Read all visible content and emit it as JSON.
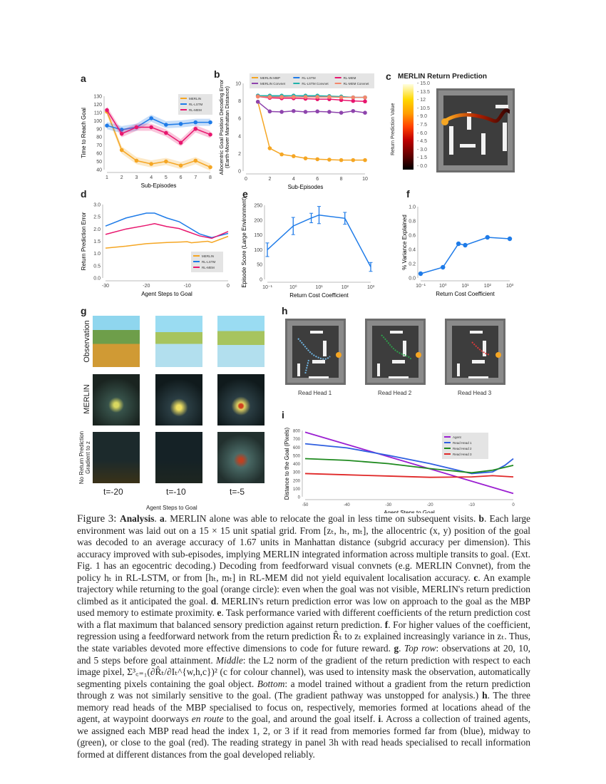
{
  "panels": {
    "a": "a",
    "b": "b",
    "c": "c",
    "d": "d",
    "e": "e",
    "f": "f",
    "g": "g",
    "h": "h",
    "i": "i"
  },
  "panel_c": {
    "title": "MERLIN Return Prediction",
    "colorbar_label": "Return Prediction Value",
    "colorbar_ticks": [
      "15.0",
      "13.5",
      "12",
      "10.5",
      "9.0",
      "7.5",
      "6.0",
      "4.5",
      "3.0",
      "1.5",
      "0.0"
    ]
  },
  "panel_g": {
    "rows": [
      "Observation",
      "MERLIN",
      "No Return Prediction Gradient to z"
    ],
    "row3_line1": "No Return Prediction",
    "row3_line2": "Gradient to z",
    "times": [
      "t=-20",
      "t=-10",
      "t=-5"
    ],
    "xlabel": "Agent Steps to Goal"
  },
  "panel_h": {
    "labels": [
      "Read Head 1",
      "Read Head 2",
      "Read Head 3"
    ],
    "trace_colors": [
      "#6fb3e0",
      "#2e9e4a",
      "#d83a3a"
    ],
    "goal_color": "#f5a623"
  },
  "chart_data": [
    {
      "id": "a",
      "type": "line",
      "xlabel": "Sub-Episodes",
      "ylabel": "Time to Reach Goal",
      "xlim": [
        1,
        8
      ],
      "ylim": [
        40,
        130
      ],
      "xticks": [
        1,
        2,
        3,
        4,
        5,
        6,
        7,
        8
      ],
      "xtick_labels": [
        "1",
        "2",
        "3",
        "4",
        "5",
        "6",
        "7",
        "8"
      ],
      "yticks": [
        40,
        50,
        60,
        70,
        80,
        90,
        100,
        110,
        120,
        130
      ],
      "ytick_labels": [
        "40",
        "50",
        "60",
        "70",
        "80",
        "90",
        "100",
        "110",
        "120",
        "130"
      ],
      "legend": "top-right",
      "grid": false,
      "x": [
        1,
        2,
        3,
        4,
        5,
        6,
        7,
        8
      ],
      "series": [
        {
          "name": "MERLIN",
          "color": "#f5a623",
          "values": [
            111,
            64,
            51,
            47,
            50,
            45,
            51,
            43
          ]
        },
        {
          "name": "RL-LSTM",
          "color": "#1e7be8",
          "values": [
            94,
            89,
            92,
            103,
            95,
            96,
            98,
            98
          ]
        },
        {
          "name": "RL-MEM",
          "color": "#e8166e",
          "values": [
            113,
            84,
            92,
            92,
            85,
            73,
            90,
            83
          ]
        }
      ]
    },
    {
      "id": "b",
      "type": "line",
      "xlabel": "Sub-Episodes",
      "ylabel": "Allocentric Goal Position Decoding Error (Earth-Mover Manhattan Distance)",
      "ylabel1": "Allocentric Goal Position Decoding Error",
      "ylabel2": "(Earth-Mover Manhattan Distance)",
      "xlim": [
        0,
        10
      ],
      "ylim": [
        0,
        10
      ],
      "xticks": [
        0,
        2,
        4,
        6,
        8,
        10
      ],
      "xtick_labels": [
        "0",
        "2",
        "4",
        "6",
        "8",
        "10"
      ],
      "yticks": [
        0,
        2,
        4,
        6,
        8,
        10
      ],
      "ytick_labels": [
        "0",
        "2",
        "4",
        "6",
        "8",
        "10"
      ],
      "legend": "top",
      "grid": false,
      "x": [
        1,
        2,
        3,
        4,
        5,
        6,
        7,
        8,
        9,
        10
      ],
      "series": [
        {
          "name": "MERLIN MBP",
          "color": "#f5a623",
          "values": [
            7.9,
            2.6,
            1.9,
            1.7,
            1.45,
            1.35,
            1.3,
            1.25,
            1.25,
            1.25
          ]
        },
        {
          "name": "MERLIN Convnet",
          "color": "#8e44ad",
          "values": [
            7.9,
            6.8,
            6.75,
            6.85,
            6.75,
            6.8,
            6.75,
            6.65,
            6.85,
            6.65
          ]
        },
        {
          "name": "RL-LSTM",
          "color": "#1e7be8",
          "values": [
            8.6,
            8.55,
            8.55,
            8.6,
            8.55,
            8.55,
            8.5,
            8.45,
            8.4,
            8.4
          ]
        },
        {
          "name": "RL-LSTM Convnet",
          "color": "#20b2aa",
          "values": [
            8.6,
            8.6,
            8.6,
            8.6,
            8.6,
            8.6,
            8.55,
            8.5,
            8.4,
            8.4
          ]
        },
        {
          "name": "RL-MEM",
          "color": "#e8166e",
          "values": [
            8.5,
            8.35,
            8.3,
            8.3,
            8.25,
            8.2,
            8.2,
            8.1,
            8.0,
            7.95
          ]
        },
        {
          "name": "RL-MEM Convnet",
          "color": "#f4876b",
          "values": [
            8.5,
            8.45,
            8.45,
            8.45,
            8.45,
            8.45,
            8.45,
            8.4,
            8.4,
            8.4
          ]
        }
      ]
    },
    {
      "id": "d",
      "type": "line",
      "xlabel": "Agent Steps to Goal",
      "ylabel": "Return Prediction Error",
      "xlim": [
        -30,
        0
      ],
      "ylim": [
        0,
        3
      ],
      "xticks": [
        -30,
        -20,
        -10,
        0
      ],
      "xtick_labels": [
        "-30",
        "-20",
        "-10",
        "0"
      ],
      "yticks": [
        0,
        0.5,
        1,
        1.5,
        2,
        2.5,
        3
      ],
      "ytick_labels": [
        "0.0",
        "0.5",
        "1.0",
        "1.5",
        "2.0",
        "2.5",
        "3.0"
      ],
      "legend": "bottom-right",
      "grid": false,
      "series": [
        {
          "name": "MERLIN",
          "color": "#f5a623",
          "x": [
            -30,
            -25,
            -20,
            -15,
            -10,
            -9,
            -5,
            -4,
            0
          ],
          "values": [
            1.22,
            1.3,
            1.4,
            1.45,
            1.48,
            1.44,
            1.5,
            1.45,
            1.7
          ]
        },
        {
          "name": "RL-LSTM",
          "color": "#1e7be8",
          "x": [
            -30,
            -25,
            -20,
            -18,
            -15,
            -12,
            -10,
            -7,
            -4,
            0
          ],
          "values": [
            2.12,
            2.45,
            2.65,
            2.65,
            2.45,
            2.3,
            2.1,
            1.8,
            1.65,
            1.82
          ]
        },
        {
          "name": "RL-MEM",
          "color": "#e8166e",
          "x": [
            -30,
            -25,
            -20,
            -18,
            -15,
            -12,
            -10,
            -7,
            -4,
            0
          ],
          "values": [
            1.78,
            2.0,
            2.15,
            2.22,
            2.1,
            2.02,
            1.9,
            1.72,
            1.62,
            1.9
          ]
        }
      ]
    },
    {
      "id": "e",
      "type": "line",
      "xscale": "log",
      "xlabel": "Return Cost Coefficient",
      "ylabel": "Episode Score (Large Environment)",
      "xlim": [
        0.1,
        1000
      ],
      "ylim": [
        0,
        250
      ],
      "xticks": [
        0.1,
        1,
        10,
        100,
        1000
      ],
      "xtick_labels": [
        "10⁻¹",
        "10⁰",
        "10¹",
        "10²",
        "10³"
      ],
      "yticks": [
        0,
        50,
        100,
        150,
        200,
        250
      ],
      "ytick_labels": [
        "0",
        "50",
        "100",
        "150",
        "200",
        "250"
      ],
      "grid": false,
      "series": [
        {
          "color": "#1e7be8",
          "x": [
            0.1,
            1,
            5,
            10,
            100,
            1000
          ],
          "values": [
            100,
            180,
            207,
            217,
            206,
            42
          ],
          "error": [
            23,
            29,
            16,
            29,
            20,
            15
          ]
        }
      ]
    },
    {
      "id": "f",
      "type": "line",
      "xscale": "log",
      "xlabel": "Return Cost Coefficient",
      "ylabel": "% Variance Explained",
      "xlim": [
        0.1,
        1000
      ],
      "ylim": [
        0,
        1
      ],
      "xticks": [
        0.1,
        1,
        10,
        100,
        1000
      ],
      "xtick_labels": [
        "10⁻¹",
        "10⁰",
        "10¹",
        "10²",
        "10³"
      ],
      "yticks": [
        0,
        0.2,
        0.4,
        0.6,
        0.8,
        1
      ],
      "ytick_labels": [
        "0.0",
        "0.2",
        "0.4",
        "0.6",
        "0.8",
        "1.0"
      ],
      "grid": false,
      "markers": true,
      "series": [
        {
          "color": "#1e7be8",
          "x": [
            0.1,
            1,
            5,
            10,
            100,
            1000
          ],
          "values": [
            0.06,
            0.15,
            0.48,
            0.46,
            0.57,
            0.55
          ]
        }
      ]
    },
    {
      "id": "i",
      "type": "line",
      "xlabel": "Agent Steps to Goal",
      "ylabel": "Distance to the Goal (Pixels)",
      "xlim": [
        -50,
        0
      ],
      "ylim": [
        0,
        800
      ],
      "xticks": [
        -50,
        -40,
        -30,
        -20,
        -10,
        0
      ],
      "xtick_labels": [
        "-50",
        "-40",
        "-30",
        "-20",
        "-10",
        "0"
      ],
      "yticks": [
        0,
        100,
        200,
        300,
        400,
        500,
        600,
        700,
        800
      ],
      "ytick_labels": [
        "0",
        "100",
        "200",
        "300",
        "400",
        "500",
        "600",
        "700",
        "800"
      ],
      "legend": "top-right",
      "grid": false,
      "series": [
        {
          "name": "Agent",
          "color": "#9b1fd1",
          "x": [
            -50,
            0
          ],
          "values": [
            780,
            40
          ]
        },
        {
          "name": "Read Head 1",
          "color": "#2f5fe0",
          "x": [
            -50,
            -40,
            -30,
            -20,
            -10,
            -5,
            -2,
            0
          ],
          "values": [
            640,
            590,
            500,
            400,
            280,
            300,
            380,
            460
          ]
        },
        {
          "name": "Read Head 2",
          "color": "#1f8a1f",
          "x": [
            -50,
            -40,
            -30,
            -20,
            -10,
            -5,
            0
          ],
          "values": [
            460,
            440,
            400,
            340,
            290,
            320,
            380
          ]
        },
        {
          "name": "Read Head 3",
          "color": "#e02828",
          "x": [
            -50,
            -40,
            -30,
            -20,
            -10,
            -5,
            0
          ],
          "values": [
            280,
            265,
            250,
            235,
            240,
            255,
            240
          ]
        }
      ]
    }
  ],
  "caption": [
    {
      "t": "Figure 3: ",
      "s": "fig"
    },
    {
      "t": "Analysis",
      "s": "b"
    },
    {
      "t": ". "
    },
    {
      "t": "a",
      "s": "b"
    },
    {
      "t": ". MERLIN alone was able to relocate the goal in less time on subsequent visits. "
    },
    {
      "t": "b",
      "s": "b"
    },
    {
      "t": ". Each large environment was laid out on a 15 × 15 unit spatial grid. From [zₜ, hₜ, mₜ], the allocentric (x, y) position of the goal was decoded to an average accuracy of 1.67 units in Manhattan distance (subgrid accuracy per dimension). This accuracy improved with sub-episodes, implying MERLIN integrated information across multiple transits to goal. (Ext. Fig. 1 has an egocentric decoding.) Decoding from feedforward visual convnets (e.g. MERLIN Convnet), from the policy hₜ in RL-LSTM, or from [hₜ, mₜ] in RL-MEM did not yield equivalent localisation accuracy. "
    },
    {
      "t": "c",
      "s": "b"
    },
    {
      "t": ". An example trajectory while returning to the goal (orange circle): even when the goal was not visible, MERLIN's return prediction climbed as it anticipated the goal. "
    },
    {
      "t": "d",
      "s": "b"
    },
    {
      "t": ". MERLIN's return prediction error was low on approach to the goal as the MBP used memory to estimate proximity. "
    },
    {
      "t": "e",
      "s": "b"
    },
    {
      "t": ". Task performance varied with different coefficients of the return prediction cost with a flat maximum that balanced sensory prediction against return prediction. "
    },
    {
      "t": "f",
      "s": "b"
    },
    {
      "t": ". For higher values of the coefficient, regression using a feedforward network from the return prediction R̂ₜ to zₜ explained increasingly variance in zₜ. Thus, the state variables devoted more effective dimensions to code for future reward. "
    },
    {
      "t": "g",
      "s": "b"
    },
    {
      "t": ". "
    },
    {
      "t": "Top row",
      "s": "i"
    },
    {
      "t": ": observations at 20, 10, and 5 steps before goal attainment. "
    },
    {
      "t": "Middle",
      "s": "i"
    },
    {
      "t": ": the L2 norm of the gradient of the return prediction with respect to each image pixel, Σ³꜀₌₁(∂R̂ₜ/∂Iₜ^{w,h,c})² (c for colour channel), was used to intensity mask the observation, automatically segmenting pixels containing the goal object. "
    },
    {
      "t": "Bottom",
      "s": "i"
    },
    {
      "t": ": a model trained without a gradient from the return prediction through z was not similarly sensitive to the goal. (The gradient pathway was unstopped for analysis.) "
    },
    {
      "t": "h",
      "s": "b"
    },
    {
      "t": ". The three memory read heads of the MBP specialised to focus on, respectively, memories formed at locations ahead of the agent, at waypoint doorways "
    },
    {
      "t": "en route",
      "s": "i"
    },
    {
      "t": " to the goal, and around the goal itself. "
    },
    {
      "t": "i",
      "s": "b"
    },
    {
      "t": ". Across a collection of trained agents, we assigned each MBP read head the index 1, 2, or 3 if it read from memories formed far from (blue), midway to (green), or close to the goal (red). The reading strategy in panel 3h with read heads specialised to recall information formed at different distances from the goal developed reliably."
    }
  ]
}
